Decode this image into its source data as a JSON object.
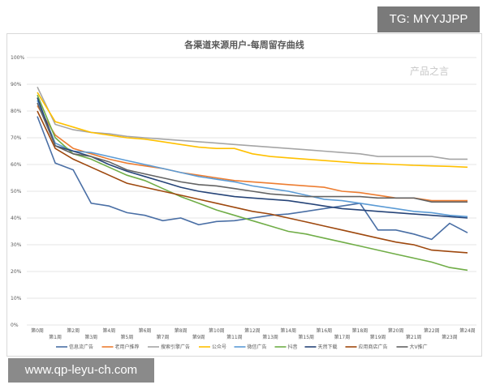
{
  "watermarks": {
    "top": "TG: MYYJJPP",
    "bottom": "www.qp-leyu-ch.com",
    "inner": "产品之言"
  },
  "chart_data": {
    "type": "line",
    "title": "各渠道来源用户-每周留存曲线",
    "xlabel": "",
    "ylabel": "",
    "ylim": [
      0,
      100
    ],
    "yticks": [
      "0%",
      "10%",
      "20%",
      "30%",
      "40%",
      "50%",
      "60%",
      "70%",
      "80%",
      "90%",
      "100%"
    ],
    "grid": true,
    "legend": "bottom",
    "categories": [
      "第0周",
      "第1周",
      "第2周",
      "第3周",
      "第4周",
      "第5周",
      "第6周",
      "第7周",
      "第8周",
      "第9周",
      "第10周",
      "第11周",
      "第12周",
      "第13周",
      "第14周",
      "第15周",
      "第16周",
      "第17周",
      "第18周",
      "第19周",
      "第20周",
      "第21周",
      "第22周",
      "第23周",
      "第24周"
    ],
    "series": [
      {
        "name": "信息流广告",
        "color": "#4a6fa5",
        "values": [
          78,
          60.5,
          58,
          45.5,
          44.5,
          42,
          41,
          39,
          40,
          37.5,
          38.7,
          39,
          40,
          41,
          41.5,
          42.5,
          43.5,
          44.5,
          45.5,
          35.5,
          35.5,
          34,
          32,
          38,
          34.5
        ]
      },
      {
        "name": "老用户推荐",
        "color": "#ed7d31",
        "values": [
          82,
          71,
          66,
          64,
          62,
          60.5,
          59.5,
          58.5,
          57,
          56,
          55,
          54,
          53.5,
          53,
          52.5,
          52,
          51.5,
          50,
          49.5,
          48.5,
          47.5,
          47.5,
          46.5,
          46.5,
          46.5
        ]
      },
      {
        "name": "搜索引擎广告",
        "color": "#a5a5a5",
        "values": [
          89,
          75,
          73,
          72,
          71.5,
          70.5,
          70,
          69.5,
          69,
          68.5,
          68,
          67.5,
          67,
          66.5,
          66,
          65.5,
          65,
          64.5,
          64,
          63,
          63,
          63,
          63,
          62,
          62
        ]
      },
      {
        "name": "公众号",
        "color": "#ffc000",
        "values": [
          87,
          76,
          74,
          72,
          71,
          70,
          69.5,
          68.5,
          67.5,
          66.5,
          66,
          66,
          64,
          63,
          62.5,
          62,
          61.5,
          61,
          60.5,
          60.3,
          60,
          59.7,
          59.5,
          59.3,
          59
        ]
      },
      {
        "name": "微信广告",
        "color": "#5b9bd5",
        "values": [
          84,
          68,
          65,
          64.5,
          63,
          61.5,
          60,
          58.5,
          57,
          55.5,
          54.5,
          53.5,
          52,
          51,
          50,
          48.5,
          47,
          46.5,
          45.5,
          44.5,
          43.5,
          42.5,
          42,
          41,
          40.5
        ]
      },
      {
        "name": "抖音",
        "color": "#70ad47",
        "values": [
          86,
          70,
          64,
          62,
          59,
          56,
          54,
          51,
          48,
          45.5,
          43,
          41,
          39,
          37,
          35,
          34,
          32.5,
          31,
          29.5,
          28,
          26.5,
          25,
          23.5,
          21.5,
          20.5
        ]
      },
      {
        "name": "天然下载",
        "color": "#264478",
        "values": [
          85,
          67,
          65,
          63,
          60,
          57.5,
          55.5,
          53.5,
          51.5,
          50,
          49,
          48,
          47.5,
          47,
          46.5,
          45.5,
          44.5,
          43.5,
          43,
          42.5,
          42,
          41.5,
          41,
          40.5,
          40
        ]
      },
      {
        "name": "应用商店广告",
        "color": "#9e480e",
        "values": [
          80,
          66,
          62,
          59,
          56,
          53,
          51.5,
          50,
          48.5,
          47,
          45.5,
          44,
          42.5,
          41.5,
          40,
          38.5,
          37,
          35.5,
          34,
          32.5,
          31,
          30,
          28,
          27.5,
          27
        ]
      },
      {
        "name": "大V推广",
        "color": "#636363",
        "values": [
          83,
          67,
          64,
          63,
          61,
          58,
          56.5,
          55,
          53.5,
          52.5,
          52,
          51,
          50,
          49,
          48.5,
          48,
          48,
          48,
          48,
          47.5,
          47.5,
          47.5,
          46,
          46,
          46
        ]
      }
    ]
  }
}
